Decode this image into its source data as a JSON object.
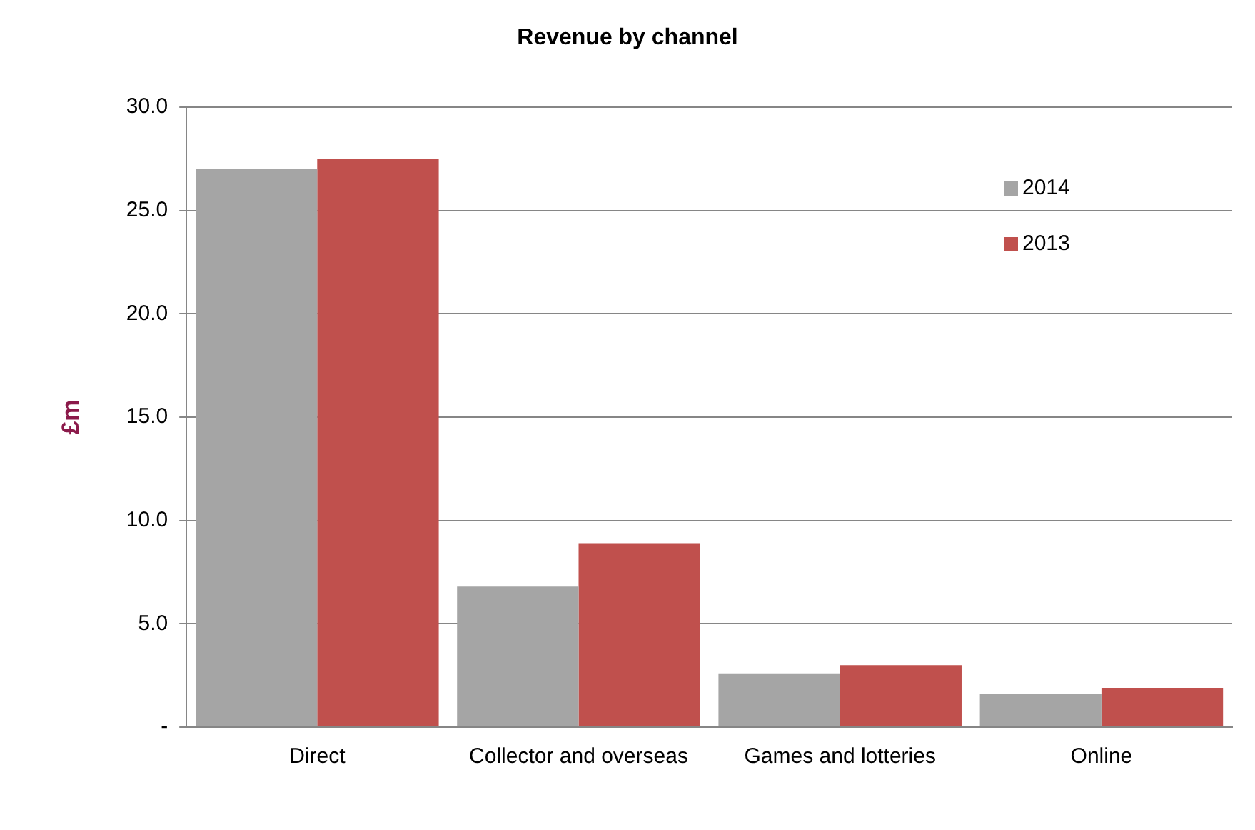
{
  "chart_data": {
    "type": "bar",
    "title": "Revenue by channel",
    "ylabel": "£m",
    "categories": [
      "Direct",
      "Collector and overseas",
      "Games and lotteries",
      "Online"
    ],
    "series": [
      {
        "name": "2014",
        "color": "#a5a5a5",
        "values": [
          27.0,
          6.8,
          2.6,
          1.6
        ]
      },
      {
        "name": "2013",
        "color": "#c0504d",
        "values": [
          27.5,
          8.9,
          3.0,
          1.9
        ]
      }
    ],
    "ylim": [
      0,
      30
    ],
    "yticks": [
      {
        "value": 0,
        "label": "-"
      },
      {
        "value": 5,
        "label": "5.0"
      },
      {
        "value": 10,
        "label": "10.0"
      },
      {
        "value": 15,
        "label": "15.0"
      },
      {
        "value": 20,
        "label": "20.0"
      },
      {
        "value": 25,
        "label": "25.0"
      },
      {
        "value": 30,
        "label": "30.0"
      }
    ],
    "grid": "y",
    "legend": "top right"
  }
}
